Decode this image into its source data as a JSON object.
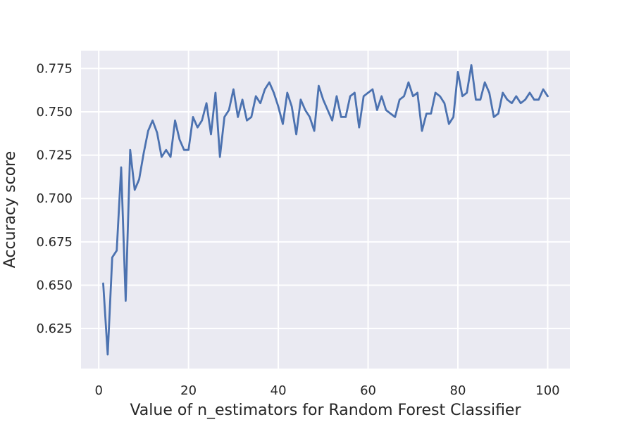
{
  "colors": {
    "background": "#ffffff",
    "plot_area": "#eaeaf2",
    "grid": "#ffffff",
    "line": "#4c72b0",
    "text": "#262626"
  },
  "chart_data": {
    "type": "line",
    "xlabel": "Value of n_estimators for Random Forest Classifier",
    "ylabel": "Accuracy score",
    "xlim": [
      -3.95,
      104.95
    ],
    "ylim": [
      0.6019,
      0.7853
    ],
    "xticks": [
      0,
      20,
      40,
      60,
      80,
      100
    ],
    "xtick_labels": [
      "0",
      "20",
      "40",
      "60",
      "80",
      "100"
    ],
    "yticks": [
      0.625,
      0.65,
      0.675,
      0.7,
      0.725,
      0.75,
      0.775
    ],
    "ytick_labels": [
      "0.625",
      "0.650",
      "0.675",
      "0.700",
      "0.725",
      "0.750",
      "0.775"
    ],
    "grid": true,
    "series": [
      {
        "x": [
          1,
          2,
          3,
          4,
          5,
          6,
          7,
          8,
          9,
          10,
          11,
          12,
          13,
          14,
          15,
          16,
          17,
          18,
          19,
          20,
          21,
          22,
          23,
          24,
          25,
          26,
          27,
          28,
          29,
          30,
          31,
          32,
          33,
          34,
          35,
          36,
          37,
          38,
          39,
          40,
          41,
          42,
          43,
          44,
          45,
          46,
          47,
          48,
          49,
          50,
          51,
          52,
          53,
          54,
          55,
          56,
          57,
          58,
          59,
          60,
          61,
          62,
          63,
          64,
          65,
          66,
          67,
          68,
          69,
          70,
          71,
          72,
          73,
          74,
          75,
          76,
          77,
          78,
          79,
          80,
          81,
          82,
          83,
          84,
          85,
          86,
          87,
          88,
          89,
          90,
          91,
          92,
          93,
          94,
          95,
          96,
          97,
          98,
          99,
          100
        ],
        "values": [
          0.651,
          0.61,
          0.666,
          0.67,
          0.718,
          0.641,
          0.728,
          0.705,
          0.711,
          0.726,
          0.739,
          0.745,
          0.738,
          0.724,
          0.728,
          0.724,
          0.745,
          0.734,
          0.728,
          0.728,
          0.747,
          0.741,
          0.745,
          0.755,
          0.737,
          0.761,
          0.724,
          0.747,
          0.751,
          0.763,
          0.747,
          0.757,
          0.745,
          0.747,
          0.759,
          0.755,
          0.763,
          0.767,
          0.761,
          0.753,
          0.743,
          0.761,
          0.753,
          0.737,
          0.757,
          0.751,
          0.747,
          0.739,
          0.765,
          0.757,
          0.751,
          0.745,
          0.759,
          0.747,
          0.747,
          0.759,
          0.761,
          0.741,
          0.759,
          0.761,
          0.763,
          0.751,
          0.759,
          0.751,
          0.749,
          0.747,
          0.757,
          0.759,
          0.767,
          0.759,
          0.761,
          0.739,
          0.749,
          0.749,
          0.761,
          0.759,
          0.755,
          0.743,
          0.747,
          0.773,
          0.759,
          0.761,
          0.777,
          0.757,
          0.757,
          0.767,
          0.761,
          0.747,
          0.749,
          0.761,
          0.757,
          0.755,
          0.759,
          0.755,
          0.757,
          0.761,
          0.757,
          0.757,
          0.763,
          0.759
        ]
      }
    ]
  }
}
